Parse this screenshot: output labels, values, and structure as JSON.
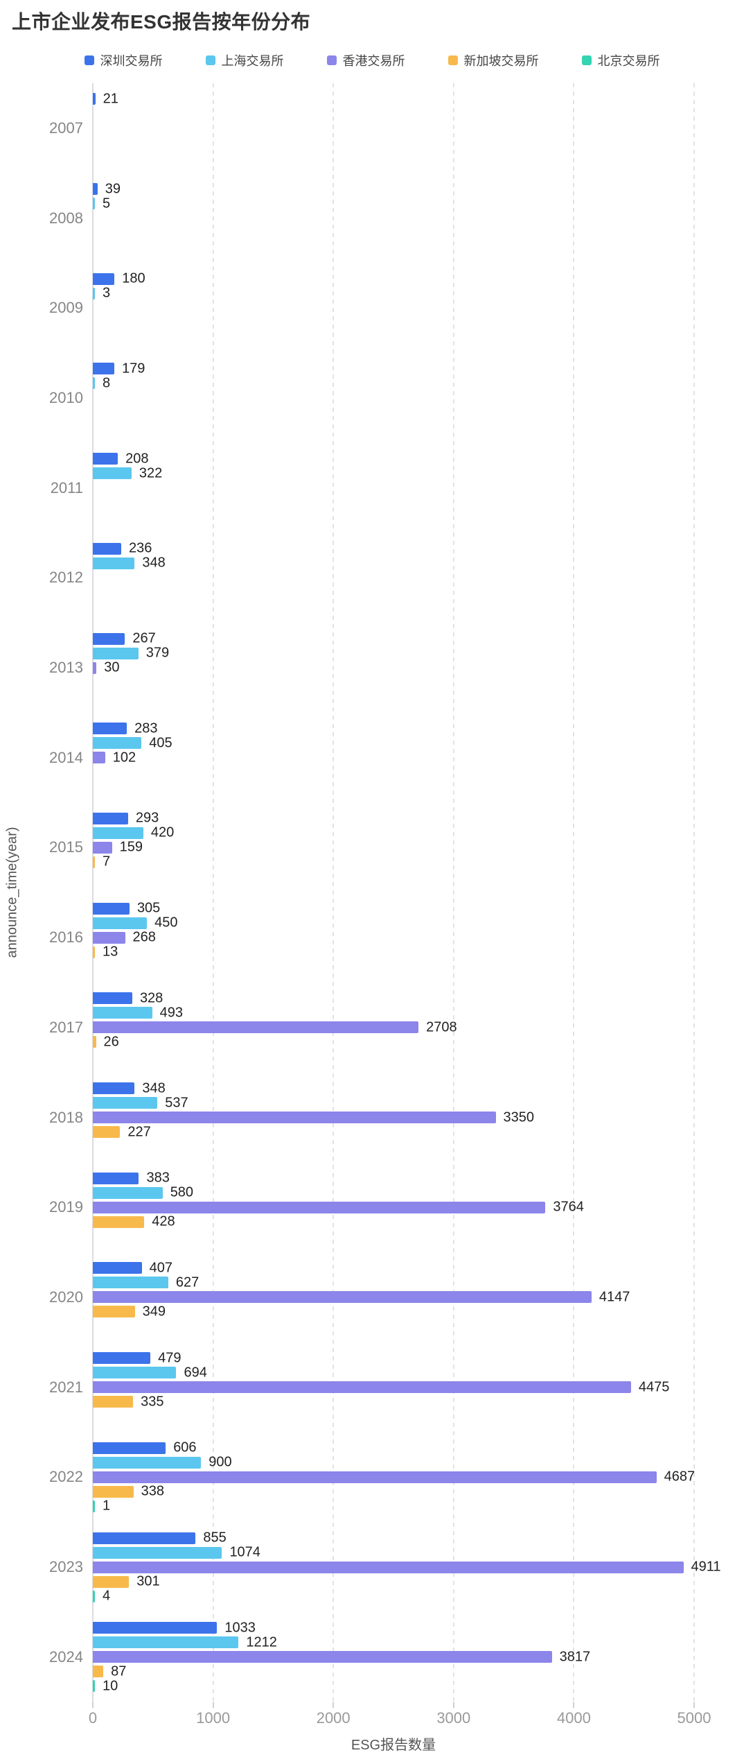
{
  "chart_data": {
    "type": "bar",
    "orientation": "horizontal",
    "title": "上市企业发布ESG报告按年份分布",
    "xlabel": "ESG报告数量",
    "ylabel": "announce_time(year)",
    "xlim": [
      0,
      5000
    ],
    "xticks": [
      0,
      1000,
      2000,
      3000,
      4000,
      5000
    ],
    "grid": "vertical-dashed",
    "legend_position": "top",
    "value_labels": true,
    "categories": [
      "2007",
      "2008",
      "2009",
      "2010",
      "2011",
      "2012",
      "2013",
      "2014",
      "2015",
      "2016",
      "2017",
      "2018",
      "2019",
      "2020",
      "2021",
      "2022",
      "2023",
      "2024"
    ],
    "series": [
      {
        "id": "shenzhen",
        "name": "深圳交易所",
        "color": "#3C73EB",
        "values": [
          21,
          39,
          180,
          179,
          208,
          236,
          267,
          283,
          293,
          305,
          328,
          348,
          383,
          407,
          479,
          606,
          855,
          1033
        ]
      },
      {
        "id": "shanghai",
        "name": "上海交易所",
        "color": "#5BC7EE",
        "values": [
          null,
          5,
          3,
          8,
          322,
          348,
          379,
          405,
          420,
          450,
          493,
          537,
          580,
          627,
          694,
          900,
          1074,
          1212
        ]
      },
      {
        "id": "hongkong",
        "name": "香港交易所",
        "color": "#8C85EA",
        "values": [
          null,
          null,
          null,
          null,
          null,
          null,
          30,
          102,
          159,
          268,
          2708,
          3350,
          3764,
          4147,
          4475,
          4687,
          4911,
          3817
        ]
      },
      {
        "id": "singapore",
        "name": "新加坡交易所",
        "color": "#F8B94B",
        "values": [
          null,
          null,
          null,
          null,
          null,
          null,
          null,
          null,
          7,
          13,
          26,
          227,
          428,
          349,
          335,
          338,
          301,
          87
        ]
      },
      {
        "id": "beijing",
        "name": "北京交易所",
        "color": "#34D3B2",
        "values": [
          null,
          null,
          null,
          null,
          null,
          null,
          null,
          null,
          null,
          null,
          null,
          null,
          null,
          null,
          null,
          1,
          4,
          10
        ]
      }
    ]
  }
}
